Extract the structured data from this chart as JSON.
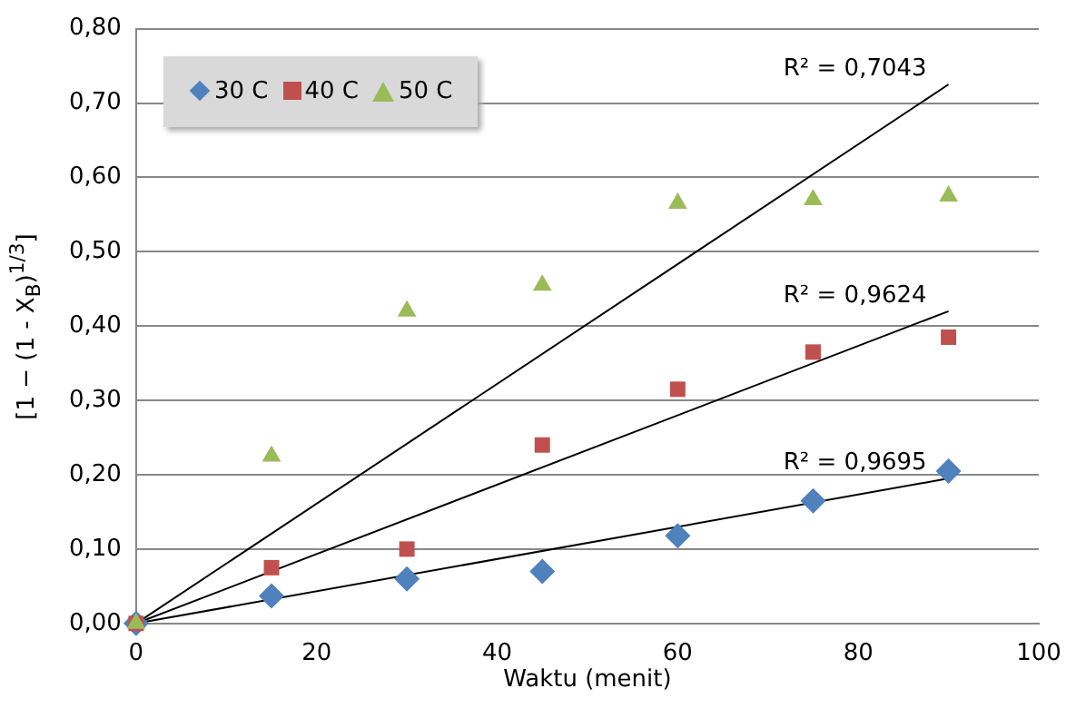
{
  "chart_data": {
    "type": "scatter",
    "xlabel": "Waktu (menit)",
    "ylabel": "[1 − (1 - X$_{B}$)$^{1/3}$]",
    "x": [
      0,
      15,
      30,
      45,
      60,
      75,
      90
    ],
    "series": [
      {
        "name": "30 C",
        "color": "#4f81bd",
        "marker": "diamond",
        "values": [
          0,
          0.037,
          0.06,
          0.07,
          0.118,
          0.165,
          0.205
        ]
      },
      {
        "name": "40 C",
        "color": "#c0504d",
        "marker": "square",
        "values": [
          0,
          0.075,
          0.1,
          0.24,
          0.315,
          0.365,
          0.385
        ]
      },
      {
        "name": "50 C",
        "color": "#9bbb59",
        "marker": "triangle",
        "values": [
          0,
          0.225,
          0.42,
          0.455,
          0.565,
          0.57,
          0.575
        ]
      },
      {
        "type": "line",
        "color": "#000000",
        "marker": "none",
        "values": [
          0,
          null,
          null,
          null,
          null,
          null,
          0.195
        ]
      },
      {
        "type": "line",
        "color": "#000000",
        "marker": "none",
        "values": [
          0,
          null,
          null,
          null,
          null,
          null,
          0.42
        ]
      },
      {
        "type": "line",
        "color": "#000000",
        "marker": "none",
        "values": [
          0,
          null,
          null,
          null,
          null,
          null,
          0.725
        ]
      }
    ],
    "annotations": [
      "R² = 0,9695",
      "R² = 0,9624",
      "R² = 0,7043"
    ],
    "xlim": [
      0,
      100
    ],
    "xticks": [
      0,
      20,
      40,
      60,
      80,
      100
    ],
    "ylim": [
      0,
      0.8
    ],
    "yticks": [
      {
        "value": 0,
        "label": "0,00"
      },
      {
        "value": 0.1,
        "label": "0,10"
      },
      {
        "value": 0.2,
        "label": "0,20"
      },
      {
        "value": 0.3,
        "label": "0,30"
      },
      {
        "value": 0.4,
        "label": "0,40"
      },
      {
        "value": 0.5,
        "label": "0,50"
      },
      {
        "value": 0.6,
        "label": "0,60"
      },
      {
        "value": 0.7,
        "label": "0,70"
      },
      {
        "value": 0.8,
        "label": "0,80"
      }
    ],
    "grid": "y",
    "legend": "top left"
  }
}
